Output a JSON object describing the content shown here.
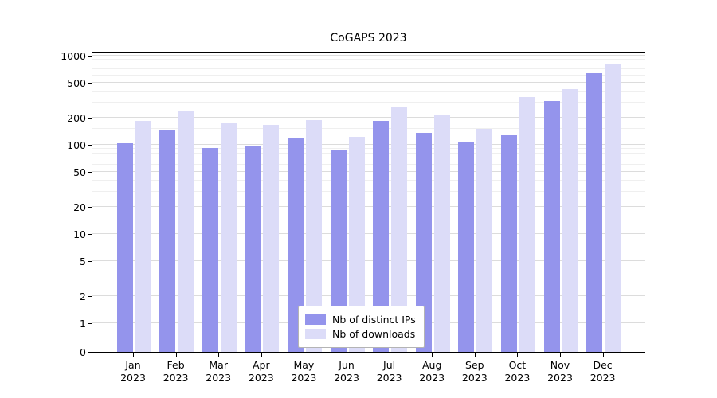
{
  "title": "CoGAPS 2023",
  "chart_data": {
    "type": "bar",
    "title": "CoGAPS 2023",
    "categories": [
      "Jan 2023",
      "Feb 2023",
      "Mar 2023",
      "Apr 2023",
      "May 2023",
      "Jun 2023",
      "Jul 2023",
      "Aug 2023",
      "Sep 2023",
      "Oct 2023",
      "Nov 2023",
      "Dec 2023"
    ],
    "series": [
      {
        "name": "Nb of distinct IPs",
        "color": "#9494ec",
        "values": [
          105,
          148,
          93,
          96,
          120,
          86,
          185,
          136,
          108,
          131,
          310,
          640
        ]
      },
      {
        "name": "Nb of downloads",
        "color": "#dcdcf8",
        "values": [
          185,
          235,
          178,
          168,
          188,
          122,
          265,
          220,
          152,
          345,
          425,
          800
        ]
      }
    ],
    "yscale": "log",
    "yticks": [
      0,
      1,
      2,
      5,
      10,
      20,
      50,
      100,
      200,
      500,
      1000
    ],
    "minor_gridlines": [
      30,
      40,
      60,
      70,
      80,
      90,
      150,
      300,
      400,
      600,
      700,
      800,
      900
    ],
    "ylim": [
      0,
      1150
    ],
    "xlabel": "",
    "ylabel": "",
    "grid": true,
    "legend_position": "lower center"
  }
}
